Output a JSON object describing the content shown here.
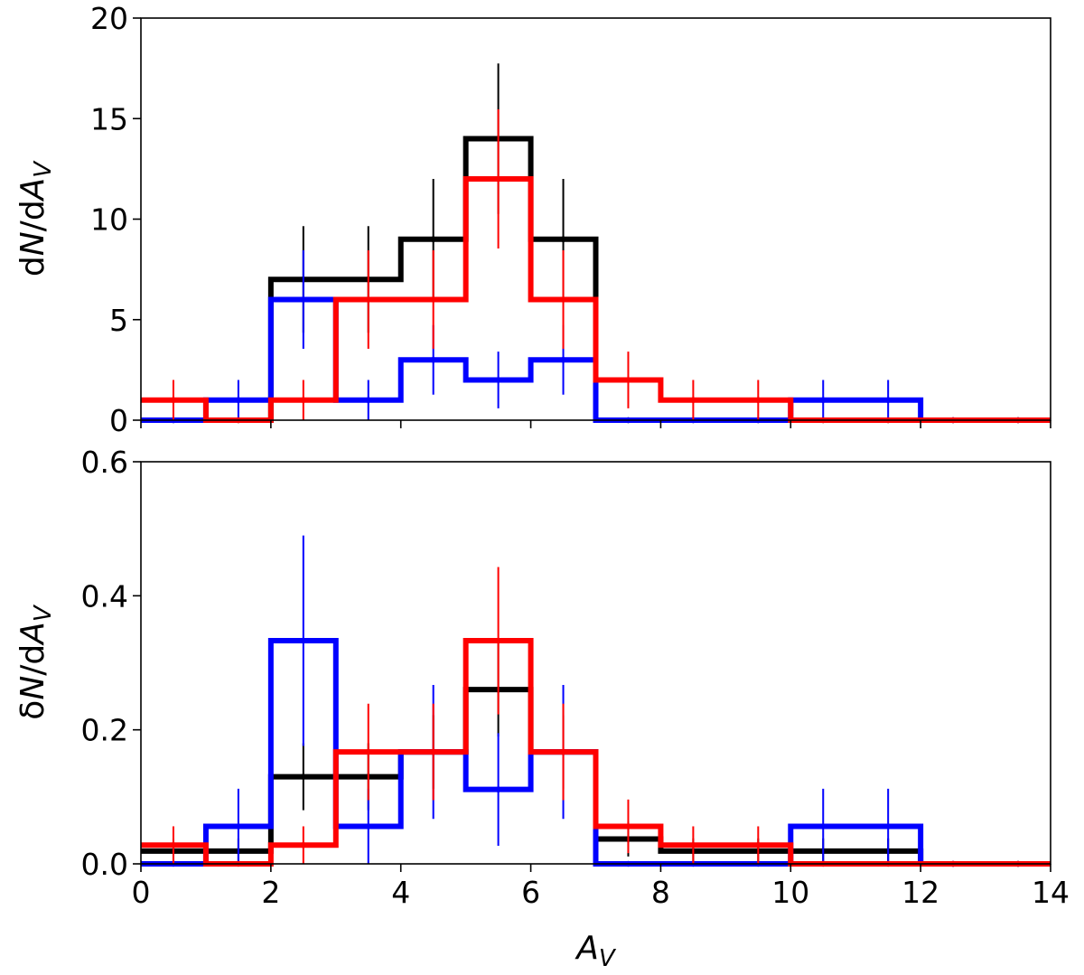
{
  "chart_data": [
    {
      "type": "step-histogram",
      "panel": "top",
      "ylabel_parts": [
        "d",
        "N",
        "/d",
        "A",
        "V"
      ],
      "xlim": [
        0,
        14
      ],
      "ylim": [
        0,
        20
      ],
      "xticks": [
        "0",
        "2",
        "4",
        "6",
        "8",
        "10",
        "12",
        "14"
      ],
      "yticks": [
        "0",
        "5",
        "10",
        "15",
        "20"
      ],
      "bin_edges": [
        0,
        1,
        2,
        3,
        4,
        5,
        6,
        7,
        8,
        9,
        10,
        11,
        12,
        13,
        14
      ],
      "series": [
        {
          "name": "black",
          "color": "#000000",
          "values": [
            0,
            0,
            7,
            7,
            9,
            14,
            9,
            0,
            0,
            0,
            0,
            0,
            0,
            0
          ],
          "errors": [
            0,
            0,
            2.65,
            2.65,
            3.0,
            3.74,
            3.0,
            0,
            0,
            0,
            0,
            0,
            0,
            0
          ]
        },
        {
          "name": "blue",
          "color": "#0000ff",
          "values": [
            0,
            1,
            6,
            1,
            3,
            2,
            3,
            0,
            0,
            0,
            1,
            1,
            0,
            0
          ],
          "errors": [
            0,
            1,
            2.45,
            1,
            1.73,
            1.41,
            1.73,
            0,
            0,
            0,
            1,
            1,
            0,
            0
          ]
        },
        {
          "name": "red",
          "color": "#ff0000",
          "values": [
            1,
            0,
            1,
            6,
            6,
            12,
            6,
            2,
            1,
            1,
            0,
            0,
            0,
            0
          ],
          "errors": [
            1,
            0,
            1,
            2.45,
            2.45,
            3.46,
            2.45,
            1.41,
            1,
            1,
            0,
            0,
            0,
            0
          ]
        }
      ]
    },
    {
      "type": "step-histogram",
      "panel": "bottom",
      "ylabel_parts": [
        "δ",
        "N",
        "/d",
        "A",
        "V"
      ],
      "xlabel_parts": [
        "A",
        "V"
      ],
      "xlim": [
        0,
        14
      ],
      "ylim": [
        0,
        0.6
      ],
      "xticks": [
        "0",
        "2",
        "4",
        "6",
        "8",
        "10",
        "12",
        "14"
      ],
      "yticks": [
        "0.0",
        "0.2",
        "0.4",
        "0.6"
      ],
      "bin_edges": [
        0,
        1,
        2,
        3,
        4,
        5,
        6,
        7,
        8,
        9,
        10,
        11,
        12,
        13,
        14
      ],
      "series": [
        {
          "name": "black",
          "color": "#000000",
          "values": [
            0.019,
            0.019,
            0.13,
            0.13,
            0.167,
            0.26,
            0.167,
            0.037,
            0.019,
            0.019,
            0.019,
            0.019,
            0,
            0
          ],
          "errors": [
            0.019,
            0.019,
            0.05,
            0.05,
            0.055,
            0.07,
            0.055,
            0.026,
            0.019,
            0.019,
            0.019,
            0.019,
            0,
            0
          ]
        },
        {
          "name": "blue",
          "color": "#0000ff",
          "values": [
            0,
            0.056,
            0.333,
            0.056,
            0.167,
            0.111,
            0.167,
            0,
            0,
            0,
            0.056,
            0.056,
            0,
            0
          ],
          "errors": [
            0,
            0.056,
            0.157,
            0.056,
            0.1,
            0.084,
            0.1,
            0,
            0,
            0,
            0.056,
            0.056,
            0,
            0
          ]
        },
        {
          "name": "red",
          "color": "#ff0000",
          "values": [
            0.028,
            0,
            0.028,
            0.167,
            0.167,
            0.333,
            0.167,
            0.056,
            0.028,
            0.028,
            0,
            0,
            0,
            0
          ],
          "errors": [
            0.028,
            0,
            0.028,
            0.072,
            0.072,
            0.11,
            0.072,
            0.04,
            0.028,
            0.028,
            0,
            0,
            0,
            0
          ]
        }
      ]
    }
  ]
}
